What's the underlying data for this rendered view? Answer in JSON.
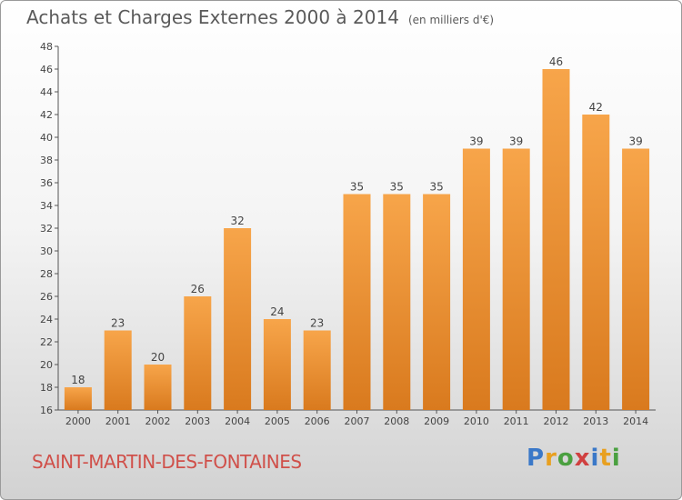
{
  "header": {
    "title": "Achats et Charges Externes 2000 à 2014",
    "unit": "(en milliers d'€)"
  },
  "footer": {
    "commune": "SAINT-MARTIN-DES-FONTAINES",
    "logo_text": "Proxiti",
    "logo_colors": [
      "#3a78c8",
      "#e8a020",
      "#4aa040",
      "#d04040",
      "#3a78c8",
      "#e8a020",
      "#4aa040"
    ]
  },
  "colors": {
    "bar_light": "#f7a54a",
    "bar_dark": "#d97a1e",
    "commune": "#d0504a"
  },
  "chart_data": {
    "type": "bar",
    "categories": [
      "2000",
      "2001",
      "2002",
      "2003",
      "2004",
      "2005",
      "2006",
      "2007",
      "2008",
      "2009",
      "2010",
      "2011",
      "2012",
      "2013",
      "2014"
    ],
    "values": [
      18,
      23,
      20,
      26,
      32,
      24,
      23,
      35,
      35,
      35,
      39,
      39,
      46,
      42,
      39
    ],
    "title": "Achats et Charges Externes 2000 à 2014",
    "ylim": [
      16,
      48
    ],
    "yticks": [
      16,
      18,
      20,
      22,
      24,
      26,
      28,
      30,
      32,
      34,
      36,
      38,
      40,
      42,
      44,
      46,
      48
    ],
    "grid": false,
    "data_labels": true
  }
}
